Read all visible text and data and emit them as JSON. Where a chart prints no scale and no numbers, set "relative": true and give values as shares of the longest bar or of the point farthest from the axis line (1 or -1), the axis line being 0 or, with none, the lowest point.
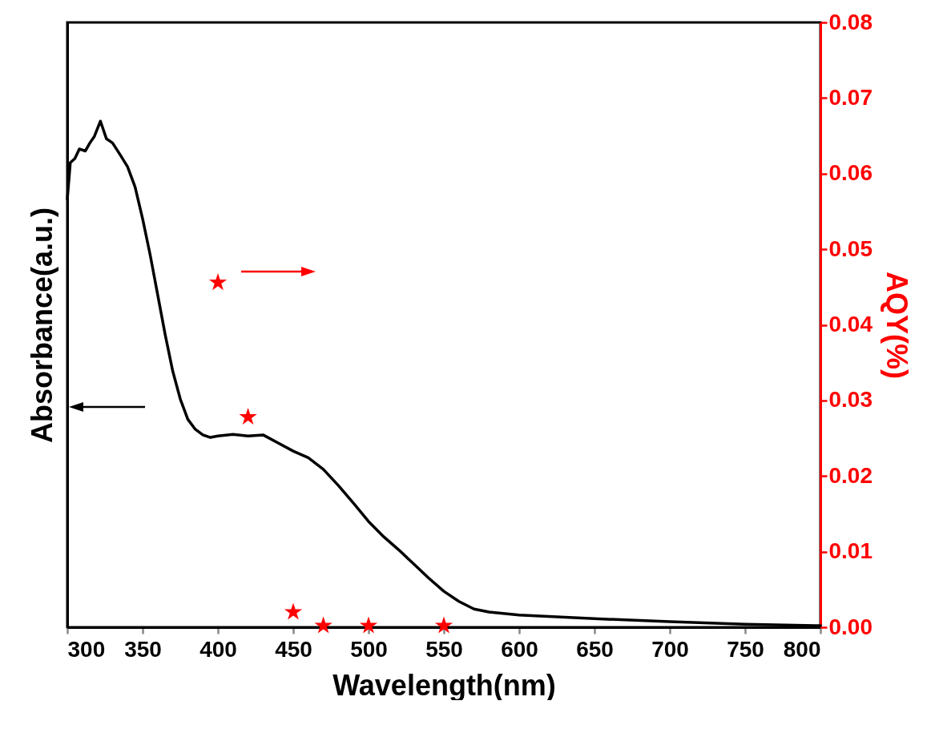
{
  "chart_data": {
    "type": "line",
    "xlabel": "Wavelength(nm)",
    "ylabel": "Absorbance(a.u.)",
    "y2label": "AQY(%)",
    "relative": true,
    "xlim": [
      300,
      800
    ],
    "xticks": [
      300,
      350,
      400,
      450,
      500,
      550,
      600,
      650,
      700,
      750,
      800
    ],
    "y2lim": [
      0,
      0.08
    ],
    "y2ticks": [
      {
        "value": 0,
        "label": "0.00"
      },
      {
        "value": 0.01,
        "label": "0.01"
      },
      {
        "value": 0.02,
        "label": "0.02"
      },
      {
        "value": 0.03,
        "label": "0.03"
      },
      {
        "value": 0.04,
        "label": "0.04"
      },
      {
        "value": 0.05,
        "label": "0.05"
      },
      {
        "value": 0.06,
        "label": "0.06"
      },
      {
        "value": 0.07,
        "label": "0.07"
      },
      {
        "value": 0.08,
        "label": "0.08"
      }
    ],
    "series": [
      {
        "color": "#000000",
        "x": [
          300,
          302,
          305,
          308,
          312,
          315,
          318,
          322,
          326,
          330,
          335,
          340,
          345,
          350,
          355,
          360,
          365,
          370,
          375,
          380,
          385,
          390,
          395,
          400,
          410,
          420,
          430,
          440,
          450,
          460,
          470,
          480,
          490,
          500,
          510,
          520,
          530,
          540,
          550,
          560,
          570,
          580,
          600,
          650,
          700,
          750,
          800
        ],
        "values": [
          0.846,
          0.918,
          0.926,
          0.945,
          0.941,
          0.957,
          0.97,
          1,
          0.965,
          0.957,
          0.934,
          0.91,
          0.87,
          0.807,
          0.736,
          0.657,
          0.578,
          0.506,
          0.451,
          0.411,
          0.391,
          0.38,
          0.375,
          0.378,
          0.381,
          0.378,
          0.38,
          0.364,
          0.348,
          0.335,
          0.312,
          0.28,
          0.245,
          0.209,
          0.179,
          0.153,
          0.125,
          0.097,
          0.071,
          0.051,
          0.036,
          0.03,
          0.024,
          0.017,
          0.011,
          0.006,
          0.003
        ]
      },
      {
        "type": "scatter",
        "axis": "y2",
        "marker": "star",
        "color": "#ff0000",
        "x": [
          400,
          420,
          450,
          470,
          500,
          550
        ],
        "values": [
          0.0456,
          0.0278,
          0.002,
          0.0002,
          0.0002,
          0.0002
        ]
      }
    ]
  }
}
